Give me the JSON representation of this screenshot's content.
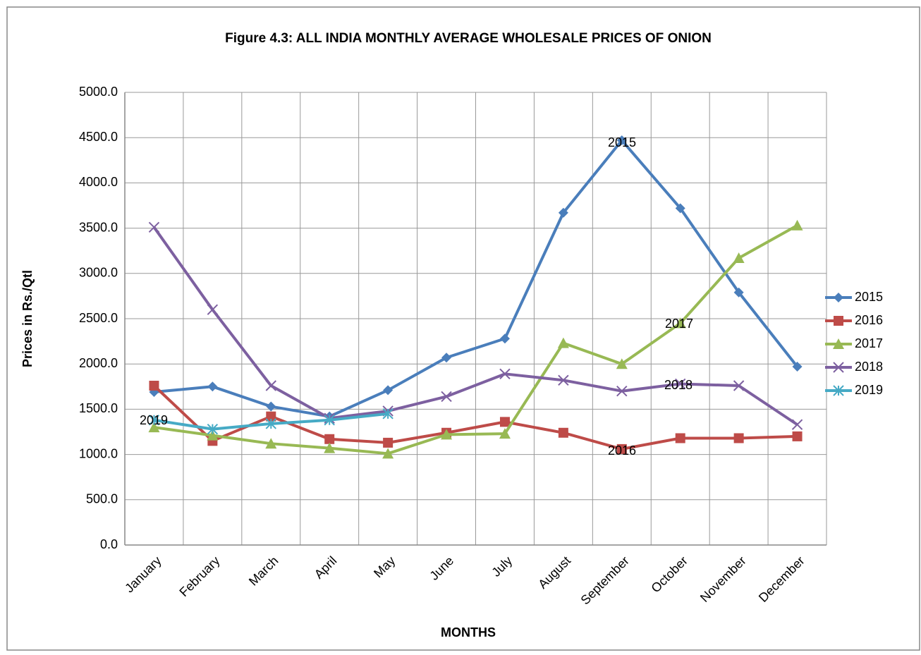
{
  "chart_data": {
    "type": "line",
    "title": "Figure 4.3: ALL INDIA MONTHLY AVERAGE WHOLESALE PRICES OF ONION",
    "x_label": "MONTHS",
    "y_label": "Prices in Rs./Qtl",
    "categories": [
      "January",
      "February",
      "March",
      "April",
      "May",
      "June",
      "July",
      "August",
      "September",
      "October",
      "November",
      "December"
    ],
    "series": [
      {
        "name": "2015",
        "color": "#4a7ebb",
        "marker": "diamond",
        "values": [
          1690,
          1750,
          1530,
          1420,
          1710,
          2070,
          2280,
          3670,
          4470,
          3720,
          2790,
          1970
        ]
      },
      {
        "name": "2016",
        "color": "#be4b48",
        "marker": "square",
        "values": [
          1760,
          1150,
          1420,
          1170,
          1130,
          1240,
          1360,
          1240,
          1060,
          1180,
          1180,
          1200
        ]
      },
      {
        "name": "2017",
        "color": "#98b954",
        "marker": "triangle",
        "values": [
          1300,
          1210,
          1120,
          1070,
          1010,
          1220,
          1230,
          2230,
          2000,
          2450,
          3170,
          3530
        ]
      },
      {
        "name": "2018",
        "color": "#7d60a0",
        "marker": "x",
        "values": [
          3510,
          2600,
          1760,
          1400,
          1480,
          1640,
          1890,
          1820,
          1700,
          1780,
          1760,
          1330
        ]
      },
      {
        "name": "2019",
        "color": "#46aac5",
        "marker": "star",
        "values": [
          1380,
          1280,
          1340,
          1380,
          1450,
          null,
          null,
          null,
          null,
          null,
          null,
          null
        ]
      }
    ],
    "annotations": [
      "2015",
      "2017",
      "2018",
      "2016",
      "2019"
    ],
    "ylim": [
      0,
      5000
    ],
    "yticks": [
      {
        "value": 0,
        "label": "0.0"
      },
      {
        "value": 500,
        "label": "500.0"
      },
      {
        "value": 1000,
        "label": "1000.0"
      },
      {
        "value": 1500,
        "label": "1500.0"
      },
      {
        "value": 2000,
        "label": "2000.0"
      },
      {
        "value": 2500,
        "label": "2500.0"
      },
      {
        "value": 3000,
        "label": "3000.0"
      },
      {
        "value": 3500,
        "label": "3500.0"
      },
      {
        "value": 4000,
        "label": "4000.0"
      },
      {
        "value": 4500,
        "label": "4500.0"
      },
      {
        "value": 5000,
        "label": "5000.0"
      }
    ],
    "grid": true,
    "legend": "right"
  }
}
